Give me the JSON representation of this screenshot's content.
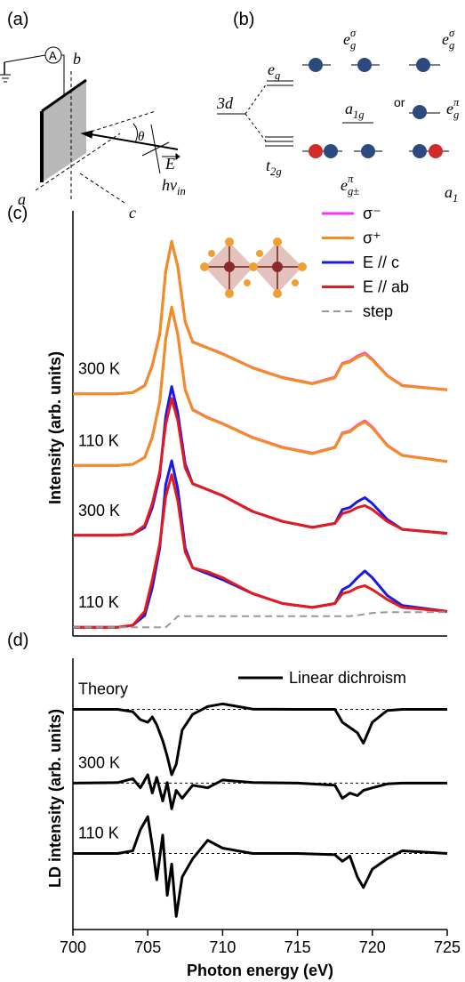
{
  "panels": [
    "(a)",
    "(b)",
    "(c)",
    "(d)"
  ],
  "diagram_a": {
    "labels": [
      {
        "base": "A"
      },
      {
        "base": "b"
      },
      {
        "base": "θ"
      },
      {
        "base": "a"
      },
      {
        "base": "c"
      },
      {
        "base": "hν",
        "sub": "in"
      },
      {
        "base": "E"
      }
    ]
  },
  "diagram_b": {
    "labels": [
      {
        "base": "3d"
      },
      {
        "base": "e",
        "sub": "g"
      },
      {
        "base": "t",
        "sub": "2g"
      },
      {
        "base": "e",
        "sub": "g",
        "sup": "σ"
      },
      {
        "base": "e",
        "sub": "g",
        "sup": "σ"
      },
      {
        "base": "a",
        "sub": "1g"
      },
      {
        "base": "or"
      },
      {
        "base": "e",
        "sub": "g±",
        "sup": "π"
      },
      {
        "base": "e",
        "sub": "g",
        "sup": "π"
      },
      {
        "base": "a",
        "sub": "1"
      }
    ]
  },
  "chart_data": [
    {
      "type": "line",
      "ylabel": "Intensity (arb. units)",
      "x": [
        700,
        703,
        704,
        704.8,
        705.3,
        705.8,
        706.2,
        706.6,
        707,
        707.5,
        708,
        709,
        710,
        712,
        714,
        716,
        717.5,
        718,
        718.5,
        719,
        719.5,
        720,
        721,
        722,
        725
      ],
      "xlim": [
        700,
        725
      ],
      "ylim": [
        0,
        10.5
      ],
      "annotations": [
        "300 K",
        "110 K",
        "300 K",
        "110 K"
      ],
      "series": [
        {
          "name": "σ⁻",
          "color": "#ff33ff",
          "values": [
            6.11,
            6.11,
            6.14,
            6.32,
            6.83,
            7.63,
            9.2,
            9.94,
            9.33,
            7.93,
            7.42,
            7.27,
            7.12,
            6.77,
            6.52,
            6.37,
            6.53,
            6.88,
            6.93,
            7.06,
            7.14,
            6.98,
            6.57,
            6.32,
            6.21
          ]
        },
        {
          "name": "σ⁺",
          "color": "#f28e1c",
          "values": [
            6.11,
            6.11,
            6.14,
            6.31,
            6.81,
            7.61,
            9.21,
            9.96,
            9.31,
            7.91,
            7.41,
            7.26,
            7.11,
            6.76,
            6.51,
            6.36,
            6.51,
            6.86,
            6.91,
            7.03,
            7.11,
            6.96,
            6.56,
            6.31,
            6.21
          ]
        },
        {
          "name": "σ⁻",
          "color": "#ff33ff",
          "values": [
            4.3,
            4.3,
            4.33,
            4.51,
            5.02,
            5.92,
            7.48,
            8.28,
            7.62,
            6.22,
            5.71,
            5.51,
            5.36,
            5.01,
            4.76,
            4.61,
            4.76,
            5.12,
            5.17,
            5.32,
            5.43,
            5.27,
            4.81,
            4.56,
            4.4
          ]
        },
        {
          "name": "σ⁺",
          "color": "#f28e1c",
          "values": [
            4.3,
            4.3,
            4.33,
            4.5,
            5.0,
            5.9,
            7.5,
            8.3,
            7.6,
            6.2,
            5.7,
            5.5,
            5.35,
            5.0,
            4.75,
            4.6,
            4.75,
            5.1,
            5.15,
            5.3,
            5.4,
            5.25,
            4.8,
            4.55,
            4.4
          ]
        },
        {
          "name": "E // c",
          "color": "#1a1ae6",
          "values": [
            2.54,
            2.54,
            2.57,
            2.74,
            3.24,
            4.04,
            5.54,
            6.29,
            5.64,
            4.34,
            3.84,
            3.69,
            3.54,
            3.14,
            2.89,
            2.74,
            2.84,
            3.19,
            3.24,
            3.39,
            3.49,
            3.34,
            2.94,
            2.69,
            2.59
          ]
        },
        {
          "name": "E // ab",
          "color": "#e61a1a",
          "values": [
            2.54,
            2.54,
            2.57,
            2.79,
            3.34,
            4.14,
            5.34,
            5.99,
            5.44,
            4.24,
            3.84,
            3.69,
            3.54,
            3.14,
            2.89,
            2.74,
            2.84,
            3.09,
            3.14,
            3.24,
            3.29,
            3.19,
            2.89,
            2.69,
            2.59
          ]
        },
        {
          "name": "E // c",
          "color": "#1a1ae6",
          "values": [
            0.22,
            0.22,
            0.27,
            0.52,
            1.22,
            2.22,
            3.82,
            4.42,
            3.72,
            2.22,
            1.72,
            1.57,
            1.42,
            1.07,
            0.82,
            0.72,
            0.82,
            1.17,
            1.27,
            1.47,
            1.64,
            1.47,
            1.02,
            0.77,
            0.62
          ]
        },
        {
          "name": "E // ab",
          "color": "#e61a1a",
          "values": [
            0.22,
            0.22,
            0.27,
            0.62,
            1.42,
            2.32,
            3.52,
            4.07,
            3.42,
            2.12,
            1.72,
            1.62,
            1.47,
            1.07,
            0.82,
            0.72,
            0.82,
            1.07,
            1.12,
            1.22,
            1.27,
            1.17,
            0.92,
            0.72,
            0.62
          ]
        },
        {
          "name": "step",
          "color": "#999999",
          "dashed": true,
          "values": [
            0.22,
            0.22,
            0.22,
            0.22,
            0.22,
            0.22,
            0.22,
            0.35,
            0.5,
            0.5,
            0.5,
            0.5,
            0.5,
            0.5,
            0.5,
            0.5,
            0.5,
            0.5,
            0.5,
            0.52,
            0.55,
            0.58,
            0.6,
            0.6,
            0.6
          ]
        }
      ]
    },
    {
      "type": "line",
      "ylabel": "LD intensity (arb. units)",
      "xlabel": "Photon energy (eV)",
      "x": [
        700,
        703,
        704,
        704.5,
        705,
        705.3,
        705.6,
        706,
        706.3,
        706.6,
        706.9,
        707.3,
        708,
        709,
        710,
        712,
        715,
        717.5,
        718,
        718.5,
        719,
        719.4,
        720,
        721,
        722,
        725
      ],
      "xlim": [
        700,
        725
      ],
      "ylim": [
        0,
        10
      ],
      "xticks": [
        700,
        705,
        710,
        715,
        720,
        725
      ],
      "legend": {
        "name": "Linear dichroism",
        "color": "#000000"
      },
      "series": [
        {
          "name": "Theory",
          "color": "#000000",
          "baseline": 8.39,
          "values": [
            8.39,
            8.39,
            8.3,
            8.0,
            7.9,
            8.1,
            7.8,
            7.2,
            6.6,
            5.9,
            6.3,
            7.6,
            8.2,
            8.5,
            8.6,
            8.4,
            8.39,
            8.39,
            7.9,
            7.7,
            7.5,
            7.1,
            7.9,
            8.35,
            8.39,
            8.39
          ]
        },
        {
          "name": "300 K",
          "color": "#000000",
          "baseline": 5.58,
          "values": [
            5.58,
            5.6,
            5.75,
            5.4,
            5.9,
            5.2,
            5.8,
            4.9,
            5.6,
            4.6,
            5.3,
            5.0,
            5.5,
            5.4,
            5.7,
            5.6,
            5.58,
            5.5,
            5.0,
            5.2,
            5.1,
            5.3,
            5.4,
            5.55,
            5.58,
            5.58
          ]
        },
        {
          "name": "110 K",
          "color": "#000000",
          "baseline": 2.9,
          "values": [
            2.9,
            2.9,
            3.0,
            3.8,
            4.3,
            3.2,
            1.9,
            3.6,
            1.3,
            2.5,
            0.5,
            2.0,
            2.7,
            3.4,
            3.1,
            2.9,
            2.9,
            2.85,
            2.6,
            2.8,
            2.0,
            1.6,
            2.3,
            2.7,
            3.0,
            2.9
          ]
        }
      ]
    }
  ]
}
